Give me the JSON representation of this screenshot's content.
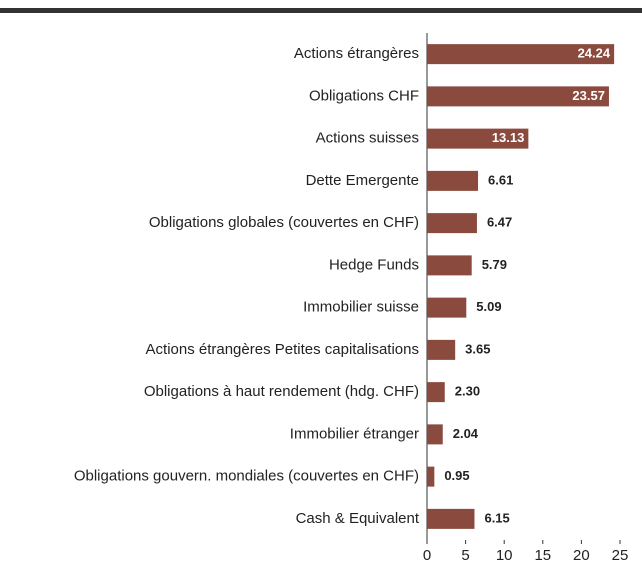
{
  "chart_data": {
    "type": "bar",
    "orientation": "horizontal",
    "categories": [
      "Actions étrangères",
      "Obligations CHF",
      "Actions suisses",
      "Dette Emergente",
      "Obligations globales (couvertes en CHF)",
      "Hedge Funds",
      "Immobilier suisse",
      "Actions étrangères Petites capitalisations",
      "Obligations à haut rendement (hdg. CHF)",
      "Immobilier étranger",
      "Obligations gouvern. mondiales (couvertes en CHF)",
      "Cash & Equivalent"
    ],
    "values": [
      24.24,
      23.57,
      13.13,
      6.61,
      6.47,
      5.79,
      5.09,
      3.65,
      2.3,
      2.04,
      0.95,
      6.15
    ],
    "value_labels": [
      "24.24",
      "23.57",
      "13.13",
      "6.61",
      "6.47",
      "5.79",
      "5.09",
      "3.65",
      "2.30",
      "2.04",
      "0.95",
      "6.15"
    ],
    "color": "#8b4a3e",
    "xlim": [
      0,
      25
    ],
    "xticks": [
      0,
      5,
      10,
      15,
      20,
      25
    ]
  }
}
